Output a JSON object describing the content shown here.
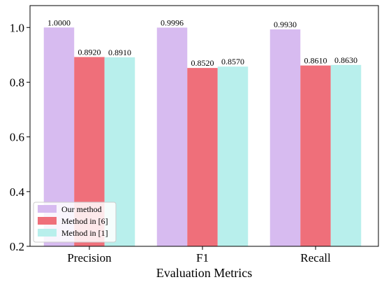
{
  "chart_data": {
    "type": "bar",
    "title": "",
    "xlabel": "Evaluation Metrics",
    "ylabel": "",
    "categories": [
      "Precision",
      "F1",
      "Recall"
    ],
    "ylim": [
      0.2,
      1.08
    ],
    "yticks": [
      0.2,
      0.4,
      0.6,
      0.8,
      1.0
    ],
    "ytick_labels": [
      "0.2",
      "0.4",
      "0.6",
      "0.8",
      "1.0"
    ],
    "grid": false,
    "legend_position": "bottom-left",
    "series": [
      {
        "name": "Our method",
        "color": "#d7bbf0",
        "values": [
          1.0,
          0.9996,
          0.993
        ],
        "labels": [
          "1.0000",
          "0.9996",
          "0.9930"
        ]
      },
      {
        "name": "Method in [6]",
        "color": "#ef6f7a",
        "values": [
          0.892,
          0.852,
          0.861
        ],
        "labels": [
          "0.8920",
          "0.8520",
          "0.8610"
        ]
      },
      {
        "name": "Method in [1]",
        "color": "#b8efec",
        "values": [
          0.891,
          0.857,
          0.863
        ],
        "labels": [
          "0.8910",
          "0.8570",
          "0.8630"
        ]
      }
    ]
  }
}
